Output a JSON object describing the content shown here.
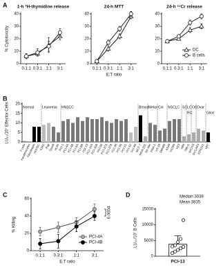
{
  "chart_data": [
    {
      "type": "line",
      "panel_label": "A",
      "title": "1-h ³H-thymidine release",
      "y_label": "% Cytotoxicity",
      "categories": [
        "0.1:1",
        "0.3:1",
        "1:1",
        "3:1"
      ],
      "ylim": [
        0,
        40
      ],
      "yticks": [
        0,
        10,
        20,
        30,
        40
      ],
      "series": [
        {
          "name": "DC",
          "color": "#222",
          "fill": "#fff",
          "marker": "triangle",
          "values": [
            6,
            8,
            15,
            22
          ],
          "errors": [
            2,
            2,
            6,
            3
          ]
        },
        {
          "name": "B cells",
          "color": "#222",
          "fill": "#fff",
          "marker": "circle",
          "values": [
            6,
            9,
            14,
            25
          ],
          "errors": [
            2,
            3,
            4,
            3
          ]
        }
      ]
    },
    {
      "type": "line",
      "title": "24-h MTT",
      "x_label": "E:T ratio",
      "categories": [
        "0.1:1",
        "0.3:1",
        "1:1",
        "3:1"
      ],
      "ylim": [
        0,
        40
      ],
      "yticks": [
        0,
        10,
        20,
        30,
        40
      ],
      "series": [
        {
          "name": "DC",
          "color": "#222",
          "fill": "#fff",
          "marker": "triangle",
          "values": [
            2,
            12,
            22,
            38
          ],
          "errors": [
            1,
            2,
            2,
            2
          ]
        },
        {
          "name": "B cells",
          "color": "#222",
          "fill": "#fff",
          "marker": "circle",
          "values": [
            2,
            17,
            28,
            40
          ],
          "errors": [
            1,
            2,
            2,
            2
          ]
        }
      ]
    },
    {
      "type": "line",
      "title": "24-h ⁵¹Cr release",
      "legend": "lower-right",
      "categories": [
        "0.1:1",
        "0.3:1",
        "1:1",
        "3:1"
      ],
      "ylim": [
        0,
        40
      ],
      "yticks": [
        0,
        10,
        20,
        30,
        40
      ],
      "series": [
        {
          "name": "DC",
          "color": "#222",
          "fill": "#fff",
          "marker": "triangle",
          "values": [
            18,
            20,
            27,
            30
          ],
          "errors": [
            1,
            1,
            2,
            2
          ]
        },
        {
          "name": "B cells",
          "color": "#222",
          "fill": "#fff",
          "marker": "circle",
          "values": [
            18,
            22,
            33,
            38
          ],
          "errors": [
            1,
            1,
            2,
            2
          ]
        }
      ]
    },
    {
      "type": "bar",
      "panel_label": "B",
      "y_label": "LU₂₀/10⁷ Effector Cells",
      "ylim": [
        0,
        20
      ],
      "yticks": [
        0,
        5,
        10,
        15,
        20
      ],
      "categories": [
        "T cells",
        "Keratinocytes",
        "Fibroblasts",
        "HUVEC",
        "K562",
        "Raji",
        "Daudi",
        "HL60",
        "PCI-1",
        "PCI-4A",
        "PCI-4B",
        "PCI-6A",
        "PCI-6B",
        "PCI-13",
        "PCI-15A",
        "PCI-15B",
        "PCI-30",
        "PCI-37A",
        "PCI-37B",
        "PCI-38",
        "PCI-50",
        "PCI-51",
        "PCI-52",
        "PCI-68",
        "MCF-7",
        "MDA-231",
        "SK-Mel",
        "PMA-1",
        "HT-29",
        "SW480",
        "A549",
        "H1299",
        "H23",
        "H69",
        "786-O",
        "SKOV3",
        "OVCAR3",
        "IGROV1",
        "U87"
      ],
      "values": [
        0.5,
        0.3,
        8,
        8,
        9,
        10,
        8,
        5,
        11,
        12,
        10,
        13,
        11,
        13,
        12,
        12,
        13,
        11,
        10,
        12,
        11,
        12,
        5,
        8,
        14,
        3,
        10,
        9,
        6,
        7,
        11,
        12,
        12,
        3,
        4,
        5,
        7,
        6,
        5
      ],
      "colors": [
        "#888",
        "#888",
        "#000",
        "#000",
        "#bbb",
        "#bbb",
        "#777",
        "#777",
        "#777",
        "#777",
        "#777",
        "#777",
        "#777",
        "#777",
        "#777",
        "#777",
        "#777",
        "#777",
        "#777",
        "#777",
        "#777",
        "#777",
        "#bbb",
        "#bbb",
        "#000",
        "#aaa",
        "#777",
        "#777",
        "#777",
        "#777",
        "#777",
        "#777",
        "#777",
        "#aaa",
        "#aaa",
        "#aaa",
        "#aaa",
        "#aaa",
        "#000"
      ],
      "groups": [
        {
          "label": "Normal",
          "count": 4
        },
        {
          "label": "Leukemia",
          "count": 4
        },
        {
          "label": "HNSCC",
          "count": 16
        },
        {
          "label": "Breast",
          "count": 2
        },
        {
          "label": "Melan",
          "count": 2
        },
        {
          "label": "Col",
          "count": 2
        },
        {
          "label": "NSCLC",
          "count": 3
        },
        {
          "label": "SCLC",
          "count": 1
        },
        {
          "label": "RC",
          "count": 1
        },
        {
          "label": "OC",
          "count": 1
        },
        {
          "label": "Ovar",
          "count": 2
        },
        {
          "label": "Glioma",
          "count": 1
        }
      ]
    },
    {
      "type": "line",
      "panel_label": "C",
      "y_label": "% Killing",
      "x_label": "E:T ratio",
      "legend": "lower-right",
      "annotation": "0.0004",
      "categories": [
        "0.1:1",
        "0.3:1",
        "1:1",
        "3:1"
      ],
      "ylim": [
        0,
        60
      ],
      "yticks": [
        0,
        20,
        40,
        60
      ],
      "series": [
        {
          "name": "PCI-4A",
          "color": "#555",
          "fill": "#aaa",
          "marker": "circle",
          "values": [
            22,
            27,
            33,
            48
          ],
          "errors": [
            5,
            6,
            5,
            6
          ]
        },
        {
          "name": "PCI-4B",
          "color": "#000",
          "fill": "#000",
          "marker": "circle",
          "values": [
            8,
            11,
            28,
            40
          ],
          "errors": [
            6,
            8,
            6,
            5
          ]
        }
      ]
    },
    {
      "type": "dotbar",
      "panel_label": "D",
      "y_label": "LU₂₀/10⁷ B Cells",
      "category": "PCI-13",
      "annotations": [
        "Median 3038",
        "Mean 3835"
      ],
      "ylim": [
        0,
        15000
      ],
      "yticks": [
        0,
        5000,
        10000,
        15000
      ],
      "bar_value": 3835,
      "error": 2700,
      "values": [
        1000,
        1500,
        2000,
        2500,
        3000,
        3100,
        3500,
        4500,
        5500,
        11500
      ]
    }
  ]
}
